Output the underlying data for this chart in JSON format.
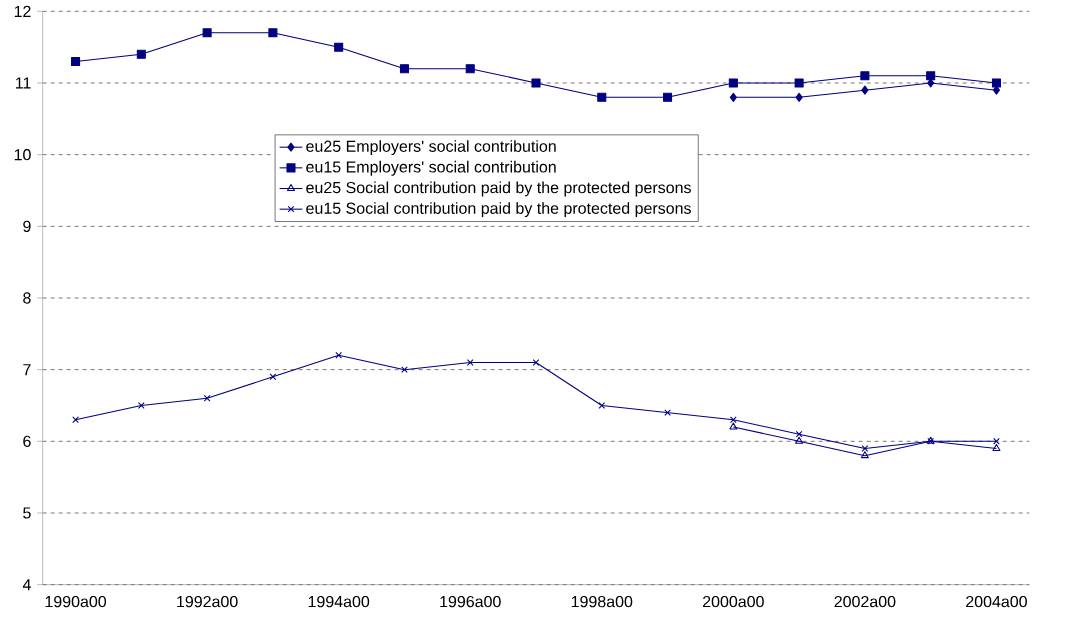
{
  "chart_data": {
    "type": "line",
    "categories": [
      "1990a00",
      null,
      "1992a00",
      null,
      "1994a00",
      null,
      "1996a00",
      null,
      "1998a00",
      null,
      "2000a00",
      null,
      "2002a00",
      null,
      "2004a00"
    ],
    "series": [
      {
        "name": "eu25 Employers' social contribution",
        "color": "#000080",
        "marker": "diamond",
        "values": [
          null,
          null,
          null,
          null,
          null,
          null,
          null,
          null,
          null,
          null,
          10.8,
          10.8,
          10.9,
          11.0,
          10.9
        ]
      },
      {
        "name": "eu15 Employers' social contribution",
        "color": "#000080",
        "marker": "square",
        "values": [
          11.3,
          11.4,
          11.7,
          11.7,
          11.5,
          11.2,
          11.2,
          11.0,
          10.8,
          10.8,
          11.0,
          11.0,
          11.1,
          11.1,
          11.0
        ]
      },
      {
        "name": "eu25 Social contribution paid by the protected persons",
        "color": "#000080",
        "marker": "triangle",
        "values": [
          null,
          null,
          null,
          null,
          null,
          null,
          null,
          null,
          null,
          null,
          6.2,
          6.0,
          5.8,
          6.0,
          5.9
        ]
      },
      {
        "name": "eu15 Social contribution paid by the protected persons",
        "color": "#000080",
        "marker": "cross",
        "values": [
          6.3,
          6.5,
          6.6,
          6.9,
          7.2,
          7.0,
          7.1,
          7.1,
          6.5,
          6.4,
          6.3,
          6.1,
          5.9,
          6.0,
          6.0
        ]
      }
    ],
    "ylim": [
      4,
      12
    ],
    "yticks": [
      4,
      5,
      6,
      7,
      8,
      9,
      10,
      11,
      12
    ],
    "grid": "y",
    "legend": "top",
    "line_style": "solid"
  }
}
